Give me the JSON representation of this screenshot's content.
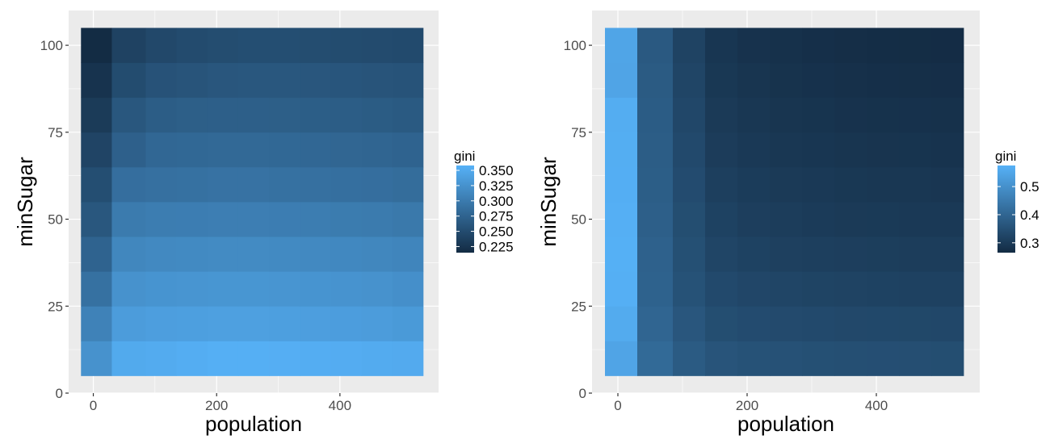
{
  "chart_data": [
    {
      "type": "heatmap",
      "xlabel": "population",
      "ylabel": "minSugar",
      "legend_title": "gini",
      "x_ticks": [
        0,
        200,
        400
      ],
      "y_ticks": [
        0,
        25,
        50,
        75,
        100
      ],
      "xlim": [
        -40,
        560
      ],
      "ylim": [
        0,
        110
      ],
      "x_bins": [
        0,
        60,
        110,
        160,
        210,
        260,
        310,
        360,
        410,
        460,
        510
      ],
      "y_bins": [
        10,
        20,
        30,
        40,
        50,
        60,
        70,
        80,
        90,
        100
      ],
      "legend_ticks": [
        0.225,
        0.25,
        0.275,
        0.3,
        0.325,
        0.35
      ],
      "value_range": [
        0.215,
        0.358
      ],
      "values": [
        [
          0.325,
          0.35,
          0.352,
          0.354,
          0.356,
          0.356,
          0.355,
          0.354,
          0.353,
          0.352,
          0.351
        ],
        [
          0.308,
          0.336,
          0.338,
          0.339,
          0.34,
          0.34,
          0.339,
          0.338,
          0.337,
          0.336,
          0.333
        ],
        [
          0.29,
          0.325,
          0.327,
          0.328,
          0.329,
          0.329,
          0.328,
          0.327,
          0.326,
          0.325,
          0.322
        ],
        [
          0.275,
          0.313,
          0.315,
          0.316,
          0.317,
          0.317,
          0.316,
          0.315,
          0.314,
          0.313,
          0.311
        ],
        [
          0.262,
          0.3,
          0.302,
          0.303,
          0.304,
          0.304,
          0.303,
          0.302,
          0.301,
          0.3,
          0.298
        ],
        [
          0.252,
          0.287,
          0.289,
          0.29,
          0.291,
          0.291,
          0.29,
          0.289,
          0.288,
          0.287,
          0.285
        ],
        [
          0.242,
          0.272,
          0.279,
          0.28,
          0.281,
          0.281,
          0.28,
          0.279,
          0.278,
          0.277,
          0.275
        ],
        [
          0.232,
          0.262,
          0.268,
          0.27,
          0.271,
          0.271,
          0.27,
          0.269,
          0.268,
          0.267,
          0.265
        ],
        [
          0.224,
          0.25,
          0.257,
          0.259,
          0.261,
          0.262,
          0.262,
          0.261,
          0.26,
          0.259,
          0.258
        ],
        [
          0.216,
          0.24,
          0.246,
          0.249,
          0.251,
          0.252,
          0.252,
          0.251,
          0.25,
          0.249,
          0.248
        ]
      ]
    },
    {
      "type": "heatmap",
      "xlabel": "population",
      "ylabel": "minSugar",
      "legend_title": "gini",
      "x_ticks": [
        0,
        200,
        400
      ],
      "y_ticks": [
        0,
        25,
        50,
        75,
        100
      ],
      "xlim": [
        -40,
        560
      ],
      "ylim": [
        0,
        110
      ],
      "x_bins": [
        0,
        60,
        110,
        160,
        210,
        260,
        310,
        360,
        410,
        460,
        510
      ],
      "y_bins": [
        10,
        20,
        30,
        40,
        50,
        60,
        70,
        80,
        90,
        100
      ],
      "legend_ticks": [
        0.3,
        0.4,
        0.5
      ],
      "value_range": [
        0.265,
        0.575
      ],
      "values": [
        [
          0.545,
          0.41,
          0.375,
          0.36,
          0.355,
          0.352,
          0.35,
          0.348,
          0.347,
          0.346,
          0.345
        ],
        [
          0.56,
          0.4,
          0.365,
          0.345,
          0.34,
          0.337,
          0.335,
          0.333,
          0.332,
          0.331,
          0.33
        ],
        [
          0.57,
          0.392,
          0.355,
          0.335,
          0.328,
          0.325,
          0.322,
          0.32,
          0.318,
          0.317,
          0.316
        ],
        [
          0.572,
          0.39,
          0.35,
          0.325,
          0.318,
          0.314,
          0.311,
          0.309,
          0.308,
          0.307,
          0.306
        ],
        [
          0.57,
          0.385,
          0.345,
          0.318,
          0.31,
          0.306,
          0.303,
          0.3,
          0.299,
          0.298,
          0.297
        ],
        [
          0.568,
          0.382,
          0.34,
          0.312,
          0.304,
          0.3,
          0.297,
          0.294,
          0.293,
          0.292,
          0.291
        ],
        [
          0.567,
          0.38,
          0.335,
          0.305,
          0.297,
          0.293,
          0.29,
          0.287,
          0.286,
          0.285,
          0.284
        ],
        [
          0.565,
          0.378,
          0.33,
          0.3,
          0.292,
          0.288,
          0.285,
          0.282,
          0.281,
          0.28,
          0.279
        ],
        [
          0.545,
          0.375,
          0.325,
          0.295,
          0.287,
          0.283,
          0.28,
          0.277,
          0.275,
          0.274,
          0.273
        ],
        [
          0.548,
          0.372,
          0.32,
          0.29,
          0.282,
          0.278,
          0.275,
          0.272,
          0.27,
          0.269,
          0.268
        ]
      ]
    }
  ]
}
